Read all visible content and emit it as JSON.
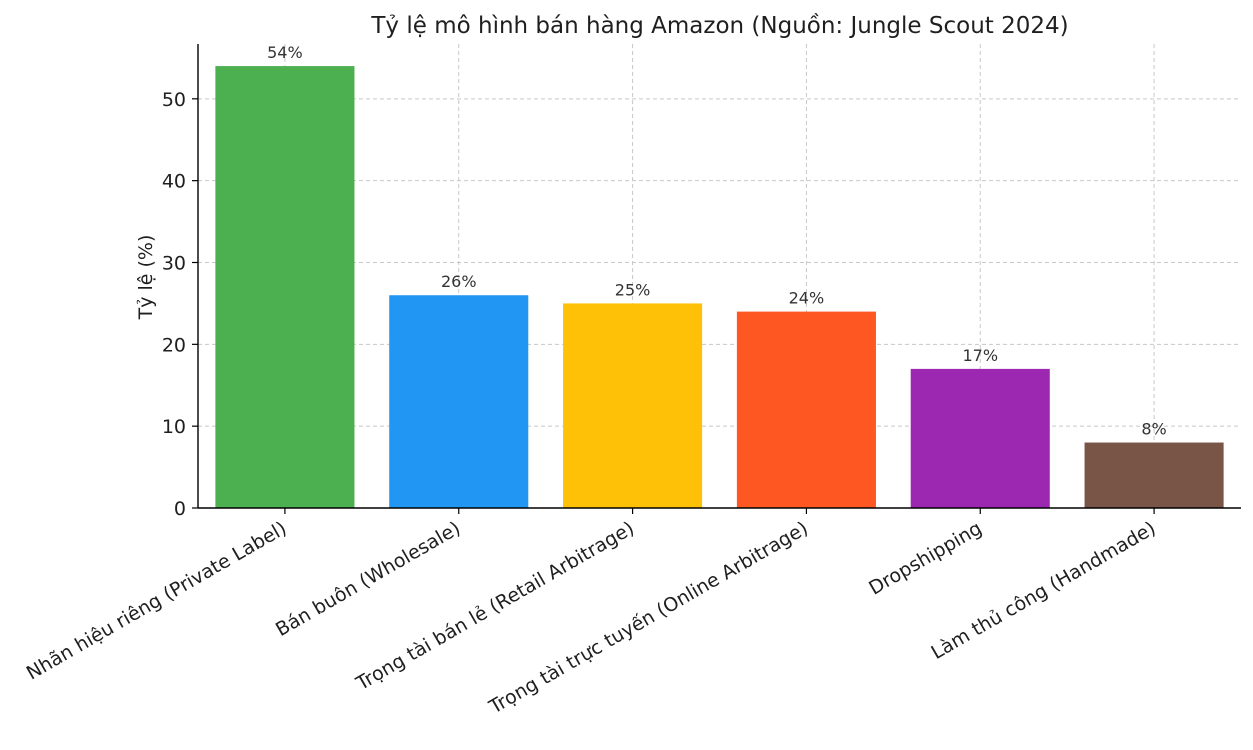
{
  "chart_data": {
    "type": "bar",
    "title": "Tỷ lệ mô hình bán hàng Amazon (Nguồn: Jungle Scout 2024)",
    "xlabel": "",
    "ylabel": "Tỷ lệ (%)",
    "categories": [
      "Nhãn hiệu riêng (Private Label)",
      "Bán buôn (Wholesale)",
      "Trọng tài bán lẻ (Retail Arbitrage)",
      "Trọng tài trực tuyến (Online Arbitrage)",
      "Dropshipping",
      "Làm thủ công (Handmade)"
    ],
    "values": [
      54,
      26,
      25,
      24,
      17,
      8
    ],
    "data_labels": [
      "54%",
      "26%",
      "25%",
      "24%",
      "17%",
      "8%"
    ],
    "colors": [
      "#4caf50",
      "#2196f3",
      "#ffc107",
      "#ff5722",
      "#9c27b0",
      "#795548"
    ],
    "ylim": [
      0,
      56.7
    ],
    "yticks": [
      0,
      10,
      20,
      30,
      40,
      50
    ],
    "grid": true,
    "legend": "none"
  }
}
